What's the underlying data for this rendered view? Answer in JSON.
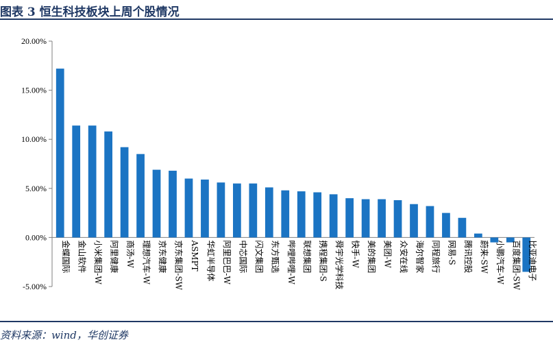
{
  "header": {
    "title": "图表 3    恒生科技板块上周个股情况"
  },
  "footer": {
    "source": "资料来源：wind，华创证券"
  },
  "colors": {
    "bar": "#1b74c3",
    "accent": "#1f3864",
    "axis": "#7f7f7f"
  },
  "chart_data": {
    "type": "bar",
    "title": "",
    "xlabel": "",
    "ylabel": "",
    "ylim": [
      -5,
      20
    ],
    "yticks": [
      -5,
      0,
      5,
      10,
      15,
      20
    ],
    "ytick_labels": [
      "-5.00%",
      "0.00%",
      "5.00%",
      "10.00%",
      "15.00%",
      "20.00%"
    ],
    "grid": false,
    "legend": "none",
    "categories": [
      "金蝶国际",
      "金山软件",
      "小米集团-W",
      "阿里健康",
      "商汤-W",
      "理想汽车-W",
      "京东健康",
      "京东集团-SW",
      "ASMPT",
      "华虹半导体",
      "阿里巴巴-W",
      "中芯国际",
      "闪文集团",
      "东方甄选",
      "哔哩哔哩-W",
      "联想集团",
      "携程集团-S",
      "舜宇光学科技",
      "快手-W",
      "美的集团",
      "美团-W",
      "众安在线",
      "海尔智家",
      "同程旅行",
      "网易-S",
      "腾讯控股",
      "蔚来-SW",
      "小鹏汽车-W",
      "百度集团-SW",
      "比亚迪电子"
    ],
    "values": [
      17.2,
      11.4,
      11.4,
      10.8,
      9.2,
      8.5,
      6.9,
      6.8,
      6.0,
      5.9,
      5.6,
      5.5,
      5.5,
      5.1,
      4.8,
      4.7,
      4.6,
      4.4,
      4.0,
      3.9,
      3.9,
      3.8,
      3.4,
      3.2,
      2.5,
      2.0,
      0.4,
      -0.5,
      -0.5,
      -3.5
    ]
  }
}
